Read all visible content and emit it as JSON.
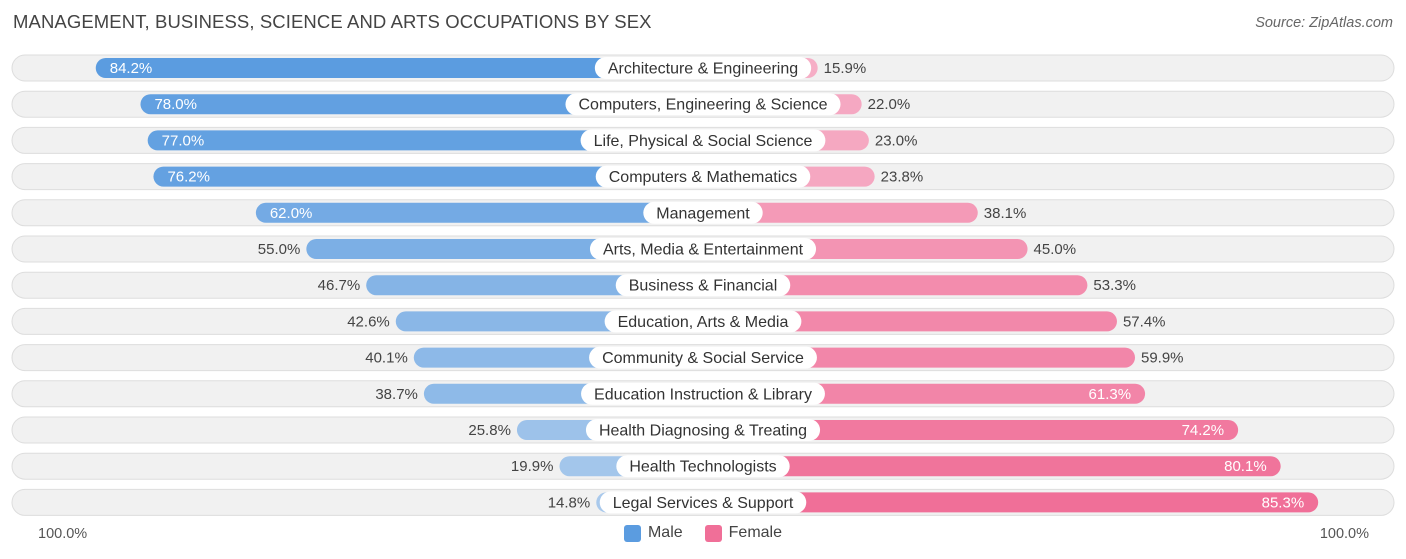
{
  "header": {
    "title": "MANAGEMENT, BUSINESS, SCIENCE AND ARTS OCCUPATIONS BY SEX",
    "source": "Source: ZipAtlas.com"
  },
  "axis": {
    "left_label": "100.0%",
    "right_label": "100.0%"
  },
  "legend": {
    "male_label": "Male",
    "female_label": "Female"
  },
  "colors": {
    "male_strong": "#5b9ce0",
    "male_light": "#a9c9ec",
    "female_strong": "#f06f98",
    "female_light": "#f6aec6",
    "row_bg": "#f1f1f1",
    "row_border": "#dddddd"
  },
  "chart_data": {
    "type": "bar",
    "orientation": "horizontal-diverging",
    "title": "MANAGEMENT, BUSINESS, SCIENCE AND ARTS OCCUPATIONS BY SEX",
    "xlim": [
      -100,
      100
    ],
    "categories": [
      "Architecture & Engineering",
      "Computers, Engineering & Science",
      "Life, Physical & Social Science",
      "Computers & Mathematics",
      "Management",
      "Arts, Media & Entertainment",
      "Business & Financial",
      "Education, Arts & Media",
      "Community & Social Service",
      "Education Instruction & Library",
      "Health Diagnosing & Treating",
      "Health Technologists",
      "Legal Services & Support"
    ],
    "series": [
      {
        "name": "Male",
        "values": [
          84.2,
          78.0,
          77.0,
          76.2,
          62.0,
          55.0,
          46.7,
          42.6,
          40.1,
          38.7,
          25.8,
          19.9,
          14.8
        ],
        "labels": [
          "84.2%",
          "78.0%",
          "77.0%",
          "76.2%",
          "62.0%",
          "55.0%",
          "46.7%",
          "42.6%",
          "40.1%",
          "38.7%",
          "25.8%",
          "19.9%",
          "14.8%"
        ]
      },
      {
        "name": "Female",
        "values": [
          15.9,
          22.0,
          23.0,
          23.8,
          38.1,
          45.0,
          53.3,
          57.4,
          59.9,
          61.3,
          74.2,
          80.1,
          85.3
        ],
        "labels": [
          "15.9%",
          "22.0%",
          "23.0%",
          "23.8%",
          "38.1%",
          "45.0%",
          "53.3%",
          "57.4%",
          "59.9%",
          "61.3%",
          "74.2%",
          "80.1%",
          "85.3%"
        ]
      }
    ],
    "legend_position": "bottom-center"
  }
}
